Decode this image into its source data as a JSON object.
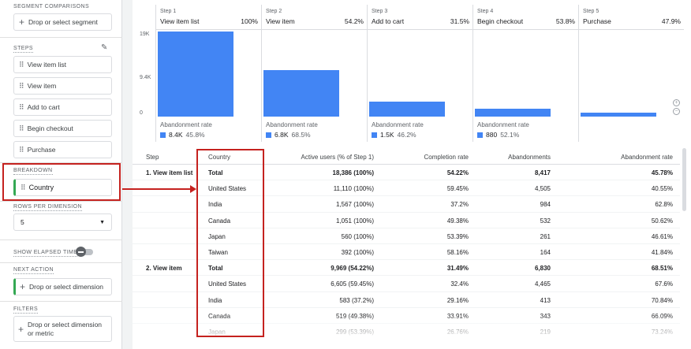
{
  "sidebar": {
    "segment_comparisons_label": "SEGMENT COMPARISONS",
    "segment_drop_label": "Drop or select segment",
    "steps_label": "STEPS",
    "steps": [
      "View item list",
      "View item",
      "Add to cart",
      "Begin checkout",
      "Purchase"
    ],
    "breakdown_label": "BREAKDOWN",
    "breakdown_item": "Country",
    "rows_per_dimension_label": "ROWS PER DIMENSION",
    "rows_per_dimension_value": "5",
    "show_elapsed_time_label": "SHOW ELAPSED TIME",
    "next_action_label": "NEXT ACTION",
    "next_action_drop_label": "Drop or select dimension",
    "filters_label": "FILTERS",
    "filters_drop_label_1": "Drop or select dimension",
    "filters_drop_label_2": "or metric"
  },
  "funnel": {
    "y_ticks": [
      "19K",
      "9.4K",
      "0"
    ],
    "abandonment_label": "Abandonment rate",
    "steps": [
      {
        "num": "Step 1",
        "name": "View item list",
        "pct": "100%",
        "active_users": 18386,
        "abandon_count": "8.4K",
        "abandon_rate": "45.8%"
      },
      {
        "num": "Step 2",
        "name": "View item",
        "pct": "54.2%",
        "active_users": 9969,
        "abandon_count": "6.8K",
        "abandon_rate": "68.5%"
      },
      {
        "num": "Step 3",
        "name": "Add to cart",
        "pct": "31.5%",
        "active_users": 3139,
        "abandon_count": "1.5K",
        "abandon_rate": "46.2%"
      },
      {
        "num": "Step 4",
        "name": "Begin checkout",
        "pct": "53.8%",
        "active_users": 1689,
        "abandon_count": "880",
        "abandon_rate": "52.1%"
      },
      {
        "num": "Step 5",
        "name": "Purchase",
        "pct": "47.9%",
        "active_users": 809
      }
    ],
    "y_max": 19000,
    "bar_color": "#4285f4"
  },
  "table": {
    "headers": {
      "step": "Step",
      "country": "Country",
      "active_users": "Active users (% of Step 1)",
      "completion_rate": "Completion rate",
      "abandonments": "Abandonments",
      "abandonment_rate": "Abandonment rate"
    },
    "groups": [
      {
        "step": "1. View item list",
        "rows": [
          {
            "country": "Total",
            "active": "18,386 (100%)",
            "completion": "54.22%",
            "abandon": "8,417",
            "rate": "45.78%",
            "bold": true
          },
          {
            "country": "United States",
            "active": "11,110 (100%)",
            "completion": "59.45%",
            "abandon": "4,505",
            "rate": "40.55%"
          },
          {
            "country": "India",
            "active": "1,567 (100%)",
            "completion": "37.2%",
            "abandon": "984",
            "rate": "62.8%"
          },
          {
            "country": "Canada",
            "active": "1,051 (100%)",
            "completion": "49.38%",
            "abandon": "532",
            "rate": "50.62%"
          },
          {
            "country": "Japan",
            "active": "560 (100%)",
            "completion": "53.39%",
            "abandon": "261",
            "rate": "46.61%"
          },
          {
            "country": "Taiwan",
            "active": "392 (100%)",
            "completion": "58.16%",
            "abandon": "164",
            "rate": "41.84%"
          }
        ]
      },
      {
        "step": "2. View item",
        "rows": [
          {
            "country": "Total",
            "active": "9,969 (54.22%)",
            "completion": "31.49%",
            "abandon": "6,830",
            "rate": "68.51%",
            "bold": true
          },
          {
            "country": "United States",
            "active": "6,605 (59.45%)",
            "completion": "32.4%",
            "abandon": "4,465",
            "rate": "67.6%"
          },
          {
            "country": "India",
            "active": "583 (37.2%)",
            "completion": "29.16%",
            "abandon": "413",
            "rate": "70.84%"
          },
          {
            "country": "Canada",
            "active": "519 (49.38%)",
            "completion": "33.91%",
            "abandon": "343",
            "rate": "66.09%"
          },
          {
            "country": "Japan",
            "active": "299 (53.39%)",
            "completion": "26.76%",
            "abandon": "219",
            "rate": "73.24%"
          }
        ]
      }
    ]
  }
}
